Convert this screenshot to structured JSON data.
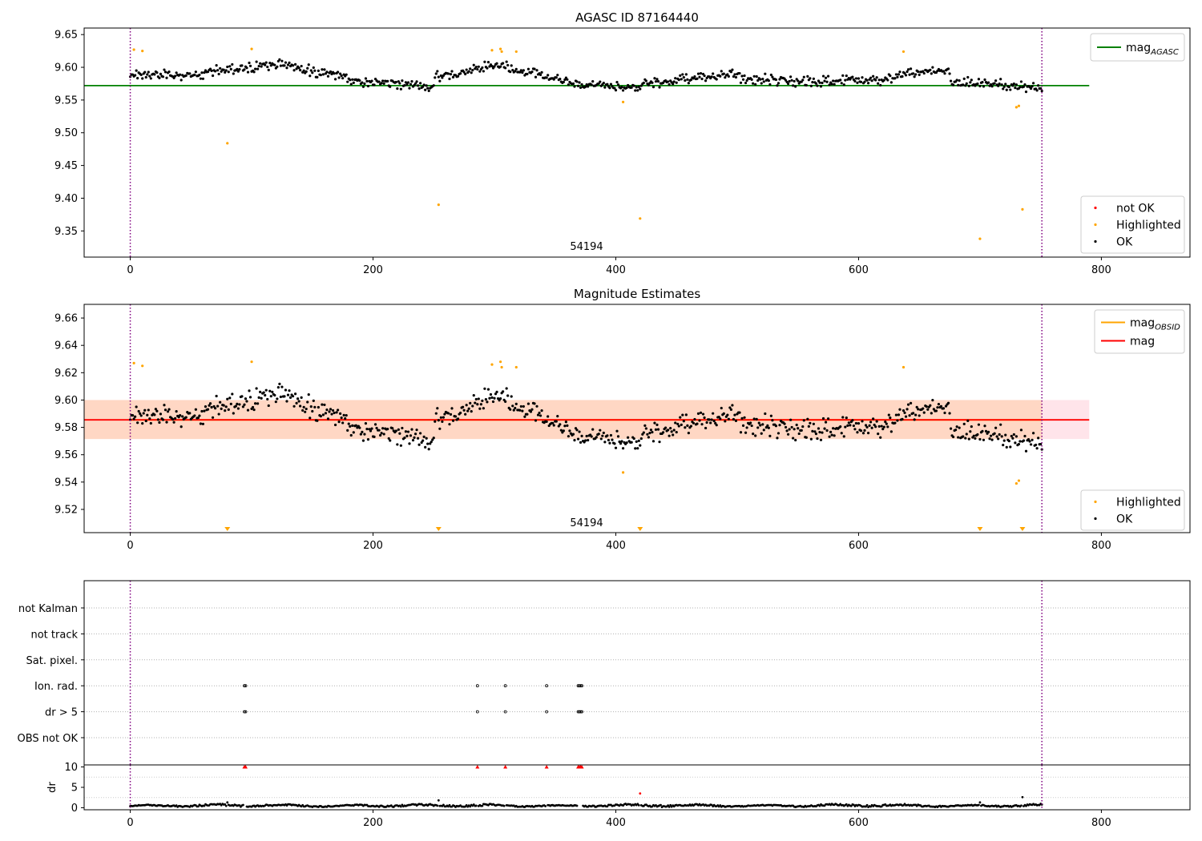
{
  "chart_data": [
    {
      "type": "scatter",
      "title": "AGASC ID 87164440",
      "xlim": [
        -38,
        873
      ],
      "ylim": [
        9.31,
        9.66
      ],
      "xticks": [
        0,
        200,
        400,
        600,
        800
      ],
      "yticks": [
        9.35,
        9.4,
        9.45,
        9.5,
        9.55,
        9.6,
        9.65
      ],
      "ytick_labels": [
        "9.35",
        "9.40",
        "9.45",
        "9.50",
        "9.55",
        "9.60",
        "9.65"
      ],
      "annotation": "54194",
      "vlines": [
        0,
        751
      ],
      "hline": {
        "y": 9.572,
        "x": [
          -38,
          790
        ],
        "color": "#008000"
      },
      "legend_upper": {
        "position": "upper right",
        "entries": [
          {
            "label": "mag",
            "sub": "AGASC",
            "color": "#008000",
            "kind": "line"
          }
        ]
      },
      "legend_lower": {
        "position": "lower right",
        "entries": [
          {
            "label": "not OK",
            "color": "#ff0000",
            "kind": "marker"
          },
          {
            "label": "Highlighted",
            "color": "#ffa500",
            "kind": "marker"
          },
          {
            "label": "OK",
            "color": "#000000",
            "kind": "marker"
          }
        ]
      },
      "highlighted": [
        [
          3,
          9.627
        ],
        [
          10,
          9.625
        ],
        [
          80,
          9.484
        ],
        [
          100,
          9.628
        ],
        [
          254,
          9.39
        ],
        [
          298,
          9.626
        ],
        [
          305,
          9.628
        ],
        [
          306,
          9.624
        ],
        [
          318,
          9.624
        ],
        [
          406,
          9.547
        ],
        [
          420,
          9.369
        ],
        [
          637,
          9.624
        ],
        [
          700,
          9.338
        ],
        [
          730,
          9.539
        ],
        [
          732,
          9.541
        ],
        [
          735,
          9.383
        ]
      ],
      "ok_segments": [
        {
          "x": [
            0,
            60
          ],
          "y": [
            9.588,
            9.589
          ],
          "amp": 0.01
        },
        {
          "x": [
            60,
            130
          ],
          "y": [
            9.592,
            9.606
          ],
          "amp": 0.012
        },
        {
          "x": [
            130,
            180
          ],
          "y": [
            9.6,
            9.585
          ],
          "amp": 0.011
        },
        {
          "x": [
            180,
            250
          ],
          "y": [
            9.58,
            9.57
          ],
          "amp": 0.012
        },
        {
          "x": [
            250,
            310
          ],
          "y": [
            9.585,
            9.606
          ],
          "amp": 0.011
        },
        {
          "x": [
            310,
            355
          ],
          "y": [
            9.6,
            9.58
          ],
          "amp": 0.011
        },
        {
          "x": [
            355,
            420
          ],
          "y": [
            9.578,
            9.568
          ],
          "amp": 0.01
        },
        {
          "x": [
            420,
            500
          ],
          "y": [
            9.575,
            9.59
          ],
          "amp": 0.012
        },
        {
          "x": [
            500,
            560
          ],
          "y": [
            9.585,
            9.578
          ],
          "amp": 0.012
        },
        {
          "x": [
            560,
            630
          ],
          "y": [
            9.578,
            9.583
          ],
          "amp": 0.011
        },
        {
          "x": [
            630,
            675
          ],
          "y": [
            9.59,
            9.595
          ],
          "amp": 0.011
        },
        {
          "x": [
            675,
            751
          ],
          "y": [
            9.578,
            9.568
          ],
          "amp": 0.012
        }
      ]
    },
    {
      "type": "scatter",
      "title": "Magnitude Estimates",
      "xlim": [
        -38,
        873
      ],
      "ylim": [
        9.503,
        9.67
      ],
      "xticks": [
        0,
        200,
        400,
        600,
        800
      ],
      "yticks": [
        9.52,
        9.54,
        9.56,
        9.58,
        9.6,
        9.62,
        9.64,
        9.66
      ],
      "ytick_labels": [
        "9.52",
        "9.54",
        "9.56",
        "9.58",
        "9.60",
        "9.62",
        "9.64",
        "9.66"
      ],
      "annotation": "54194",
      "vlines": [
        0,
        751
      ],
      "band_outer": {
        "y": [
          9.5715,
          9.6
        ],
        "x": [
          -38,
          790
        ],
        "color": "#ffe4ea"
      },
      "band_inner": {
        "y": [
          9.5715,
          9.6
        ],
        "x": [
          -38,
          751
        ],
        "color": "#ffd7c4"
      },
      "mag_line": {
        "y": 9.5855,
        "x": [
          -38,
          790
        ],
        "color": "#ff0000"
      },
      "obsid_line": {
        "y": 9.5855,
        "x": [
          0,
          751
        ],
        "color": "#ffa500"
      },
      "legend_upper": {
        "position": "upper right",
        "entries": [
          {
            "label": "mag",
            "sub": "OBSID",
            "color": "#ffa500",
            "kind": "line"
          },
          {
            "label": "mag",
            "sub": "",
            "color": "#ff0000",
            "kind": "line"
          }
        ]
      },
      "legend_lower": {
        "position": "lower right",
        "entries": [
          {
            "label": "Highlighted",
            "color": "#ffa500",
            "kind": "marker"
          },
          {
            "label": "OK",
            "color": "#000000",
            "kind": "marker"
          }
        ]
      },
      "highlighted": [
        [
          3,
          9.627
        ],
        [
          10,
          9.625
        ],
        [
          100,
          9.628
        ],
        [
          298,
          9.626
        ],
        [
          305,
          9.628
        ],
        [
          306,
          9.624
        ],
        [
          318,
          9.624
        ],
        [
          406,
          9.547
        ],
        [
          637,
          9.624
        ],
        [
          730,
          9.539
        ],
        [
          732,
          9.541
        ]
      ],
      "below_axis_markers_x": [
        80,
        254,
        420,
        700,
        735
      ]
    },
    {
      "type": "scatter",
      "title": "",
      "xlim": [
        -38,
        873
      ],
      "xticks": [
        0,
        200,
        400,
        600,
        800
      ],
      "vlines": [
        0,
        751
      ],
      "flag_rows": [
        "not Kalman",
        "not track",
        "Sat. pixel.",
        "Ion. rad.",
        "dr > 5",
        "OBS not OK"
      ],
      "flags": {
        "Ion. rad.": [
          94,
          95,
          286,
          309,
          343,
          369,
          370,
          371,
          372
        ],
        "dr > 5": [
          94,
          95,
          286,
          309,
          343,
          369,
          370,
          371,
          372
        ]
      }
    },
    {
      "type": "scatter",
      "title": "",
      "xlim": [
        -38,
        873
      ],
      "ylim": [
        -0.5,
        10.5
      ],
      "xticks": [
        0,
        200,
        400,
        600,
        800
      ],
      "yticks": [
        0,
        5,
        10
      ],
      "ytick_labels": [
        "0",
        "5",
        "10"
      ],
      "ylabel": "dr",
      "vlines": [
        0,
        751
      ],
      "capped": [
        94,
        95,
        286,
        309,
        343,
        369,
        370,
        371,
        372
      ],
      "capped_value": 10,
      "outliers": [
        [
          80,
          1.3
        ],
        [
          254,
          1.8
        ],
        [
          420,
          3.5
        ],
        [
          700,
          1.3
        ],
        [
          735,
          2.6
        ]
      ]
    }
  ]
}
